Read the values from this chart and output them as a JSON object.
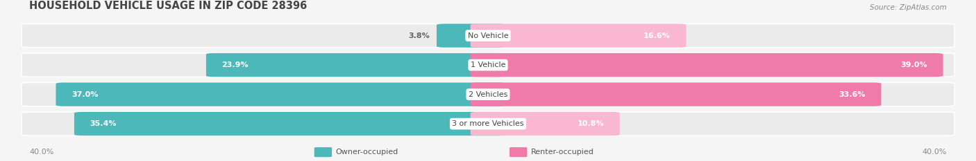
{
  "title": "HOUSEHOLD VEHICLE USAGE IN ZIP CODE 28396",
  "source": "Source: ZipAtlas.com",
  "categories": [
    "No Vehicle",
    "1 Vehicle",
    "2 Vehicles",
    "3 or more Vehicles"
  ],
  "owner_values": [
    3.8,
    23.9,
    37.0,
    35.4
  ],
  "renter_values": [
    16.6,
    39.0,
    33.6,
    10.8
  ],
  "max_value": 40.0,
  "owner_color": "#4db8ba",
  "renter_color": "#f07aaa",
  "renter_light_color": "#f9b8d0",
  "bg_color": "#f5f5f5",
  "bar_bg_color": "#e8e8e8",
  "row_bg_color": "#ebebeb",
  "axis_label_left": "40.0%",
  "axis_label_right": "40.0%",
  "title_fontsize": 10.5,
  "source_fontsize": 7.5,
  "value_fontsize": 8,
  "cat_fontsize": 8,
  "legend_fontsize": 8
}
